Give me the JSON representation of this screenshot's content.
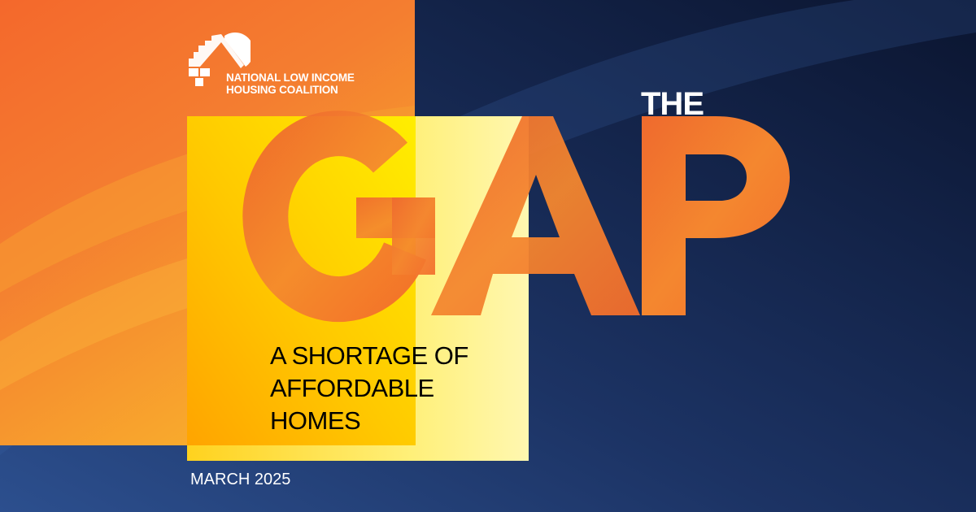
{
  "organization": {
    "line1": "NATIONAL LOW INCOME",
    "line2": "HOUSING COALITION",
    "logo_icon": "house-sun-logo"
  },
  "title": {
    "small": "THE",
    "large_letters": [
      "G",
      "A",
      "P"
    ]
  },
  "subtitle": {
    "lines": [
      "A SHORTAGE OF",
      "AFFORDABLE",
      "HOMES"
    ]
  },
  "date": "MARCH 2025",
  "colors": {
    "orange": "#f47a30",
    "navy": "#14244a",
    "yellow": "#ffe000",
    "white": "#ffffff"
  }
}
